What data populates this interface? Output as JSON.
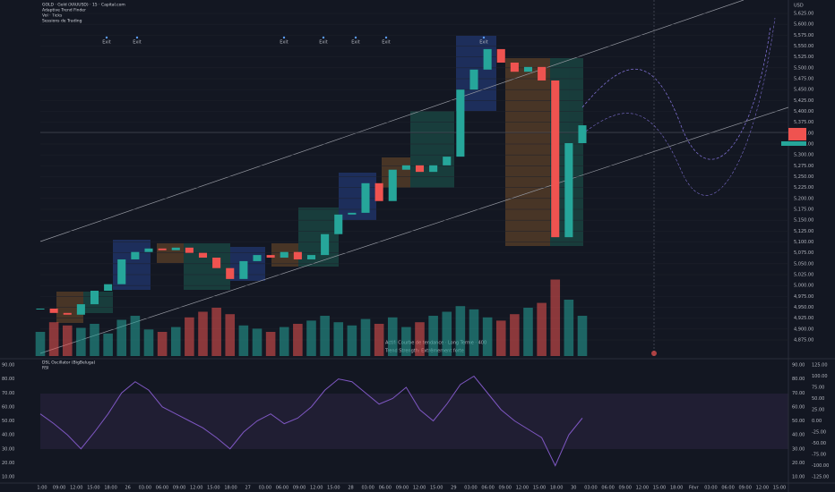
{
  "header": {
    "title": "GOLD · Gold (XAUUSD) · 15 · Capital.com",
    "lines": [
      "Adaptive Trend Finder",
      "Vol · Ticks",
      "Sessions de Trading"
    ]
  },
  "currency": "USD",
  "price_axis": [
    "5,625.00",
    "5,600.00",
    "5,575.00",
    "5,550.00",
    "5,525.00",
    "5,500.00",
    "5,475.00",
    "5,450.00",
    "5,425.00",
    "5,400.00",
    "5,375.00",
    "5,350.00",
    "5,325.00",
    "5,300.00",
    "5,275.00",
    "5,250.00",
    "5,225.00",
    "5,200.00",
    "5,175.00",
    "5,150.00",
    "5,125.00",
    "5,100.00",
    "5,075.00",
    "5,050.00",
    "5,025.00",
    "5,000.00",
    "4,975.00",
    "4,950.00",
    "4,925.00",
    "4,900.00",
    "4,875.00"
  ],
  "price_series": {
    "ylim": [
      4875,
      5625
    ],
    "closes": [
      4947,
      4937,
      4933,
      4957,
      4988,
      5003,
      5060,
      5077,
      5085,
      5081,
      5087,
      5075,
      5064,
      5040,
      5015,
      5056,
      5070,
      5064,
      5077,
      5060,
      5070,
      5118,
      5163,
      5167,
      5235,
      5194,
      5266,
      5276,
      5261,
      5276,
      5296,
      5450,
      5496,
      5543,
      5512,
      5491,
      5502,
      5471,
      5111,
      5327,
      5368
    ],
    "volume_ylim": [
      0,
      100
    ],
    "volume": [
      30,
      42,
      38,
      35,
      40,
      28,
      45,
      50,
      33,
      30,
      36,
      48,
      55,
      60,
      52,
      38,
      34,
      30,
      36,
      40,
      44,
      50,
      42,
      38,
      46,
      40,
      48,
      36,
      42,
      50,
      55,
      62,
      58,
      48,
      44,
      52,
      60,
      66,
      95,
      70,
      50
    ]
  },
  "markers": [
    "Exit",
    "Exit",
    "Exit",
    "Exit",
    "Exit",
    "Exit",
    "Exit"
  ],
  "legend_notes": [
    "Actif: Courbe de tendance · Long Terme · 400",
    "Trend Strength: Extrêmement forte"
  ],
  "oscillator": {
    "title": "DSL Oscillator (BigBeluga)",
    "subtitle": "RSI",
    "left_axis": [
      "90.00",
      "80.00",
      "70.00",
      "60.00",
      "50.00",
      "40.00",
      "30.00",
      "20.00",
      "10.00"
    ],
    "right_axis": [
      "125.00",
      "100.00",
      "75.00",
      "50.00",
      "25.00",
      "0.00",
      "-25.00",
      "-50.00",
      "-75.00",
      "-100.00",
      "-125.00"
    ],
    "ylim": [
      10,
      90
    ],
    "values": [
      55,
      48,
      40,
      30,
      42,
      55,
      70,
      78,
      72,
      60,
      55,
      50,
      45,
      38,
      30,
      42,
      50,
      55,
      48,
      52,
      60,
      72,
      80,
      78,
      70,
      62,
      66,
      74,
      58,
      50,
      62,
      76,
      82,
      70,
      58,
      50,
      44,
      38,
      18,
      40,
      52
    ]
  },
  "time_axis": [
    "1:00",
    "09:00",
    "12:00",
    "15:00",
    "18:00",
    "26",
    "03:00",
    "06:00",
    "09:00",
    "12:00",
    "15:00",
    "18:00",
    "27",
    "03:00",
    "06:00",
    "09:00",
    "12:00",
    "15:00",
    "28",
    "03:00",
    "06:00",
    "09:00",
    "12:00",
    "15:00",
    "29",
    "03:00",
    "06:00",
    "09:00",
    "12:00",
    "15:00",
    "18:00",
    "30",
    "03:00",
    "06:00",
    "09:00",
    "12:00",
    "15:00",
    "18:00",
    "Févr",
    "03:00",
    "06:00",
    "09:00",
    "12:00",
    "15:00"
  ]
}
